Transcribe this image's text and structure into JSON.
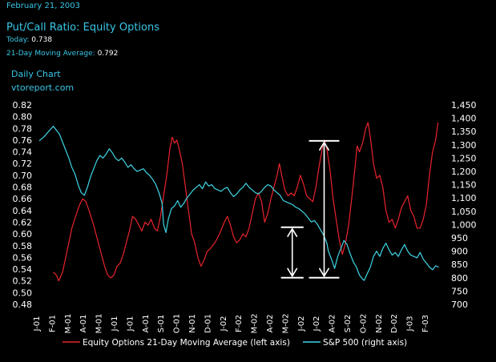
{
  "header": {
    "date": "February 21, 2003",
    "title": "Put/Call Ratio: Equity Options",
    "today_label": "Today:",
    "today_value": "0.738",
    "mavg_label": "21-Day Moving Average:",
    "mavg_value": "0.792",
    "daily_chart": "Daily Chart",
    "site": "vtoreport.com"
  },
  "colors": {
    "background": "#000000",
    "red_series": "#e8242c",
    "cyan_series": "#3fd6e6",
    "text_cyan": "#39c6e6",
    "annotation": "#ffffff"
  },
  "chart_data": {
    "type": "line",
    "left_axis": {
      "ylim": [
        0.48,
        0.82
      ],
      "ticks": [
        "0.82",
        "0.80",
        "0.78",
        "0.76",
        "0.74",
        "0.72",
        "0.70",
        "0.68",
        "0.66",
        "0.64",
        "0.62",
        "0.60",
        "0.58",
        "0.56",
        "0.54",
        "0.52",
        "0.50",
        "0.48"
      ]
    },
    "right_axis": {
      "ylim": [
        700,
        1450
      ],
      "ticks": [
        "1,450",
        "1,400",
        "1,350",
        "1,300",
        "1,250",
        "1,200",
        "1,150",
        "1,100",
        "1,050",
        "1,000",
        "950",
        "900",
        "850",
        "800",
        "750",
        "700"
      ]
    },
    "x_ticks": [
      "J-01",
      "F-01",
      "M-01",
      "A-01",
      "M-01",
      "J-01",
      "J-01",
      "A-01",
      "S-01",
      "O-01",
      "N-01",
      "D-01",
      "J-02",
      "F-02",
      "M-02",
      "A-02",
      "M-02",
      "J-02",
      "J-02",
      "A-02",
      "S-02",
      "O-02",
      "N-02",
      "D-02",
      "J-03",
      "F-03"
    ],
    "x_range": [
      0,
      25.7
    ],
    "series": [
      {
        "name": "Equity Options 21-Day Moving Average (left axis)",
        "axis": "left",
        "points": [
          [
            0.9,
            0.535
          ],
          [
            1.1,
            0.53
          ],
          [
            1.25,
            0.52
          ],
          [
            1.5,
            0.535
          ],
          [
            1.7,
            0.56
          ],
          [
            1.9,
            0.585
          ],
          [
            2.1,
            0.61
          ],
          [
            2.4,
            0.635
          ],
          [
            2.6,
            0.65
          ],
          [
            2.8,
            0.66
          ],
          [
            3.0,
            0.655
          ],
          [
            3.2,
            0.64
          ],
          [
            3.5,
            0.615
          ],
          [
            3.8,
            0.585
          ],
          [
            4.0,
            0.565
          ],
          [
            4.2,
            0.545
          ],
          [
            4.4,
            0.53
          ],
          [
            4.6,
            0.525
          ],
          [
            4.8,
            0.53
          ],
          [
            5.0,
            0.545
          ],
          [
            5.2,
            0.55
          ],
          [
            5.4,
            0.565
          ],
          [
            5.6,
            0.585
          ],
          [
            5.8,
            0.605
          ],
          [
            6.0,
            0.63
          ],
          [
            6.2,
            0.625
          ],
          [
            6.4,
            0.615
          ],
          [
            6.6,
            0.605
          ],
          [
            6.8,
            0.62
          ],
          [
            7.0,
            0.615
          ],
          [
            7.2,
            0.625
          ],
          [
            7.4,
            0.61
          ],
          [
            7.6,
            0.605
          ],
          [
            7.8,
            0.63
          ],
          [
            8.0,
            0.665
          ],
          [
            8.2,
            0.7
          ],
          [
            8.4,
            0.745
          ],
          [
            8.55,
            0.765
          ],
          [
            8.7,
            0.755
          ],
          [
            8.85,
            0.76
          ],
          [
            9.0,
            0.745
          ],
          [
            9.2,
            0.72
          ],
          [
            9.4,
            0.68
          ],
          [
            9.6,
            0.64
          ],
          [
            9.8,
            0.6
          ],
          [
            10.0,
            0.585
          ],
          [
            10.2,
            0.56
          ],
          [
            10.4,
            0.545
          ],
          [
            10.6,
            0.555
          ],
          [
            10.8,
            0.57
          ],
          [
            11.0,
            0.575
          ],
          [
            11.3,
            0.585
          ],
          [
            11.6,
            0.6
          ],
          [
            11.9,
            0.62
          ],
          [
            12.1,
            0.63
          ],
          [
            12.3,
            0.615
          ],
          [
            12.5,
            0.595
          ],
          [
            12.7,
            0.585
          ],
          [
            12.9,
            0.59
          ],
          [
            13.1,
            0.6
          ],
          [
            13.3,
            0.595
          ],
          [
            13.5,
            0.61
          ],
          [
            13.7,
            0.635
          ],
          [
            13.9,
            0.66
          ],
          [
            14.1,
            0.67
          ],
          [
            14.3,
            0.655
          ],
          [
            14.5,
            0.62
          ],
          [
            14.7,
            0.635
          ],
          [
            14.9,
            0.66
          ],
          [
            15.1,
            0.68
          ],
          [
            15.3,
            0.7
          ],
          [
            15.45,
            0.72
          ],
          [
            15.6,
            0.7
          ],
          [
            15.8,
            0.675
          ],
          [
            16.0,
            0.665
          ],
          [
            16.2,
            0.67
          ],
          [
            16.4,
            0.665
          ],
          [
            16.6,
            0.68
          ],
          [
            16.8,
            0.7
          ],
          [
            17.0,
            0.685
          ],
          [
            17.2,
            0.665
          ],
          [
            17.4,
            0.66
          ],
          [
            17.6,
            0.655
          ],
          [
            17.8,
            0.68
          ],
          [
            18.0,
            0.715
          ],
          [
            18.2,
            0.745
          ],
          [
            18.35,
            0.76
          ],
          [
            18.5,
            0.745
          ],
          [
            18.7,
            0.71
          ],
          [
            18.9,
            0.66
          ],
          [
            19.1,
            0.625
          ],
          [
            19.3,
            0.59
          ],
          [
            19.5,
            0.565
          ],
          [
            19.7,
            0.585
          ],
          [
            19.9,
            0.615
          ],
          [
            20.1,
            0.66
          ],
          [
            20.3,
            0.71
          ],
          [
            20.45,
            0.75
          ],
          [
            20.6,
            0.74
          ],
          [
            20.8,
            0.755
          ],
          [
            21.0,
            0.78
          ],
          [
            21.15,
            0.79
          ],
          [
            21.3,
            0.765
          ],
          [
            21.5,
            0.72
          ],
          [
            21.7,
            0.695
          ],
          [
            21.9,
            0.7
          ],
          [
            22.1,
            0.68
          ],
          [
            22.3,
            0.64
          ],
          [
            22.5,
            0.62
          ],
          [
            22.7,
            0.625
          ],
          [
            22.9,
            0.61
          ],
          [
            23.1,
            0.625
          ],
          [
            23.3,
            0.645
          ],
          [
            23.5,
            0.655
          ],
          [
            23.7,
            0.665
          ],
          [
            23.9,
            0.64
          ],
          [
            24.1,
            0.63
          ],
          [
            24.3,
            0.61
          ],
          [
            24.5,
            0.61
          ],
          [
            24.7,
            0.625
          ],
          [
            24.9,
            0.65
          ],
          [
            25.1,
            0.7
          ],
          [
            25.3,
            0.74
          ],
          [
            25.5,
            0.76
          ],
          [
            25.65,
            0.79
          ]
        ]
      },
      {
        "name": "S&P 500 (right axis)",
        "axis": "right",
        "points": [
          [
            0,
            1315
          ],
          [
            0.3,
            1330
          ],
          [
            0.6,
            1350
          ],
          [
            0.9,
            1370
          ],
          [
            1.1,
            1355
          ],
          [
            1.3,
            1340
          ],
          [
            1.5,
            1310
          ],
          [
            1.7,
            1280
          ],
          [
            1.9,
            1250
          ],
          [
            2.1,
            1215
          ],
          [
            2.3,
            1190
          ],
          [
            2.5,
            1150
          ],
          [
            2.7,
            1120
          ],
          [
            2.9,
            1110
          ],
          [
            3.1,
            1140
          ],
          [
            3.3,
            1180
          ],
          [
            3.5,
            1210
          ],
          [
            3.7,
            1240
          ],
          [
            3.9,
            1260
          ],
          [
            4.1,
            1250
          ],
          [
            4.3,
            1265
          ],
          [
            4.5,
            1285
          ],
          [
            4.7,
            1270
          ],
          [
            4.9,
            1250
          ],
          [
            5.1,
            1240
          ],
          [
            5.3,
            1250
          ],
          [
            5.5,
            1235
          ],
          [
            5.7,
            1215
          ],
          [
            5.9,
            1225
          ],
          [
            6.1,
            1210
          ],
          [
            6.3,
            1200
          ],
          [
            6.5,
            1205
          ],
          [
            6.7,
            1210
          ],
          [
            6.9,
            1195
          ],
          [
            7.1,
            1185
          ],
          [
            7.3,
            1170
          ],
          [
            7.5,
            1150
          ],
          [
            7.7,
            1120
          ],
          [
            7.9,
            1080
          ],
          [
            8.0,
            1000
          ],
          [
            8.15,
            970
          ],
          [
            8.3,
            1020
          ],
          [
            8.5,
            1060
          ],
          [
            8.7,
            1070
          ],
          [
            8.9,
            1090
          ],
          [
            9.1,
            1065
          ],
          [
            9.3,
            1080
          ],
          [
            9.5,
            1100
          ],
          [
            9.7,
            1115
          ],
          [
            9.9,
            1130
          ],
          [
            10.1,
            1140
          ],
          [
            10.3,
            1150
          ],
          [
            10.5,
            1135
          ],
          [
            10.7,
            1160
          ],
          [
            10.9,
            1145
          ],
          [
            11.1,
            1150
          ],
          [
            11.3,
            1135
          ],
          [
            11.5,
            1130
          ],
          [
            11.7,
            1125
          ],
          [
            11.9,
            1135
          ],
          [
            12.1,
            1140
          ],
          [
            12.3,
            1120
          ],
          [
            12.5,
            1105
          ],
          [
            12.7,
            1115
          ],
          [
            12.9,
            1130
          ],
          [
            13.1,
            1140
          ],
          [
            13.3,
            1155
          ],
          [
            13.5,
            1140
          ],
          [
            13.7,
            1130
          ],
          [
            13.9,
            1120
          ],
          [
            14.1,
            1115
          ],
          [
            14.3,
            1125
          ],
          [
            14.5,
            1140
          ],
          [
            14.7,
            1150
          ],
          [
            14.9,
            1145
          ],
          [
            15.1,
            1130
          ],
          [
            15.3,
            1120
          ],
          [
            15.5,
            1110
          ],
          [
            15.7,
            1090
          ],
          [
            15.9,
            1085
          ],
          [
            16.1,
            1080
          ],
          [
            16.3,
            1075
          ],
          [
            16.5,
            1065
          ],
          [
            16.7,
            1060
          ],
          [
            16.9,
            1050
          ],
          [
            17.1,
            1040
          ],
          [
            17.3,
            1025
          ],
          [
            17.5,
            1010
          ],
          [
            17.7,
            1015
          ],
          [
            17.9,
            1000
          ],
          [
            18.1,
            980
          ],
          [
            18.3,
            960
          ],
          [
            18.5,
            930
          ],
          [
            18.6,
            900
          ],
          [
            18.8,
            870
          ],
          [
            19.0,
            835
          ],
          [
            19.2,
            880
          ],
          [
            19.4,
            910
          ],
          [
            19.6,
            940
          ],
          [
            19.8,
            925
          ],
          [
            20.0,
            890
          ],
          [
            20.2,
            860
          ],
          [
            20.4,
            840
          ],
          [
            20.6,
            810
          ],
          [
            20.8,
            795
          ],
          [
            20.9,
            790
          ],
          [
            21.1,
            815
          ],
          [
            21.3,
            840
          ],
          [
            21.5,
            880
          ],
          [
            21.7,
            900
          ],
          [
            21.9,
            880
          ],
          [
            22.1,
            910
          ],
          [
            22.3,
            930
          ],
          [
            22.5,
            905
          ],
          [
            22.7,
            885
          ],
          [
            22.9,
            895
          ],
          [
            23.1,
            880
          ],
          [
            23.3,
            905
          ],
          [
            23.5,
            925
          ],
          [
            23.7,
            900
          ],
          [
            23.9,
            885
          ],
          [
            24.1,
            880
          ],
          [
            24.3,
            875
          ],
          [
            24.5,
            895
          ],
          [
            24.7,
            870
          ],
          [
            24.9,
            855
          ],
          [
            25.1,
            840
          ],
          [
            25.3,
            830
          ],
          [
            25.5,
            845
          ],
          [
            25.7,
            840
          ]
        ]
      }
    ],
    "annotations": [
      {
        "type": "bracket",
        "axis": "right",
        "x_from": 17.35,
        "x_to": 19.3,
        "y_top": 1315,
        "y_bottom": 800
      },
      {
        "type": "bracket",
        "axis": "right",
        "x_from": 15.55,
        "x_to": 17.0,
        "y_top": 990,
        "y_bottom": 800
      }
    ]
  }
}
